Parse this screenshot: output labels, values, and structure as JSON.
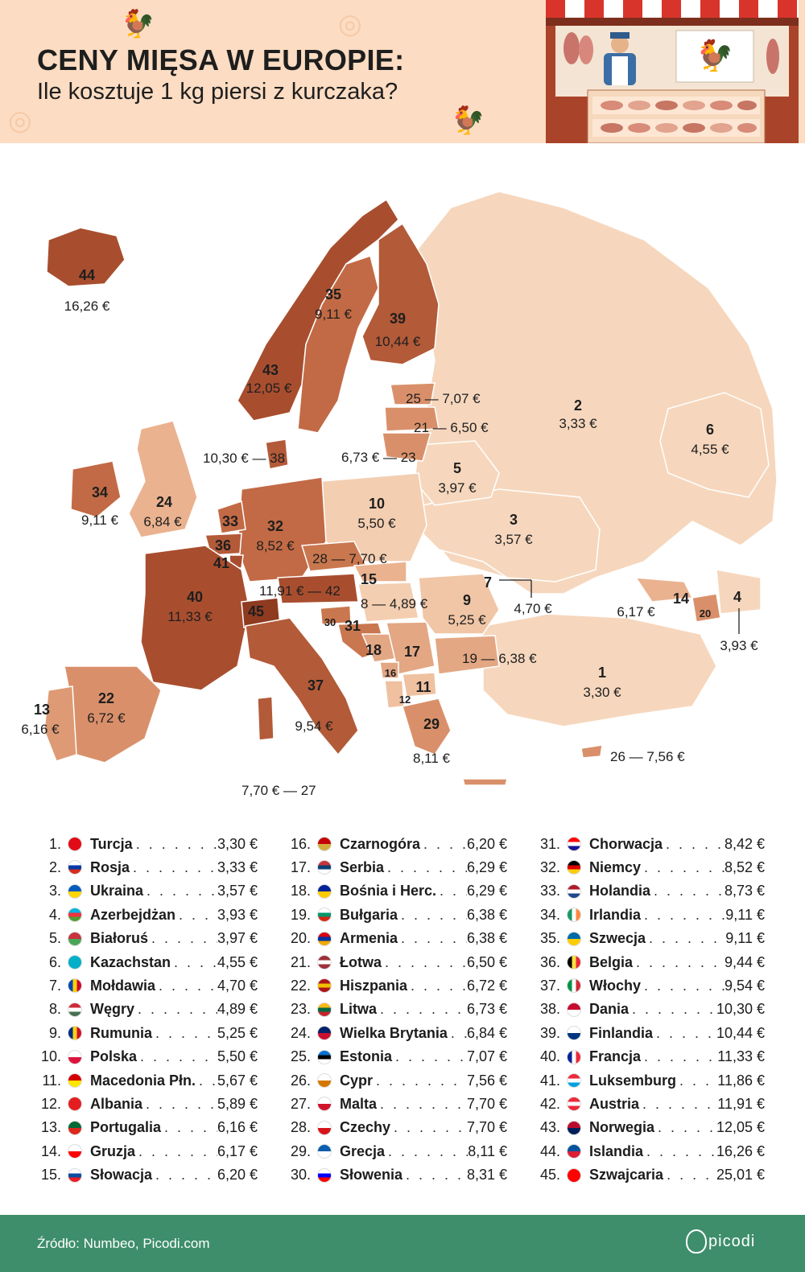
{
  "header": {
    "title": "CENY MIĘSA W EUROPIE:",
    "subtitle": "Ile kosztuje 1 kg piersi z kurczaka?"
  },
  "colors": {
    "header_bg": "#fcdcc2",
    "tier1": "#f6d7bd",
    "tier2": "#eab28f",
    "tier3": "#d9906a",
    "tier4": "#c26a45",
    "tier5": "#a84e2f",
    "footer": "#3e8e6c"
  },
  "map": {
    "labels": {
      "is_rank": "44",
      "is_price": "16,26 €",
      "se_rank": "35",
      "se_price": "9,11 €",
      "fi_rank": "39",
      "fi_price": "10,44 €",
      "no_rank": "43",
      "no_price": "12,05 €",
      "ee": "25 — 7,07 €",
      "lv": "21 — 6,50 €",
      "lt": "6,73 € — 23",
      "dk": "10,30 € — 38",
      "ie_rank": "34",
      "ie_price": "9,11 €",
      "gb_rank": "24",
      "gb_price": "6,84 €",
      "ru_rank": "2",
      "ru_price": "3,33 €",
      "kz_rank": "6",
      "kz_price": "4,55 €",
      "by_rank": "5",
      "by_price": "3,97 €",
      "pl_rank": "10",
      "pl_price": "5,50 €",
      "ua_rank": "3",
      "ua_price": "3,57 €",
      "nl_rank": "33",
      "be_rank": "36",
      "lu_rank": "41",
      "de_rank": "32",
      "de_price": "8,52 €",
      "cz": "28 — 7,70 €",
      "sk_rank": "15",
      "at": "11,91 € — 42",
      "hu": "8 — 4,89 €",
      "ro_rank": "9",
      "ro_price": "5,25 €",
      "md_rank": "7",
      "md_price": "4,70 €",
      "fr_rank": "40",
      "fr_price": "11,33 €",
      "ch_rank": "45",
      "si_rank": "30",
      "hr_rank": "31",
      "ba_rank": "18",
      "rs_rank": "17",
      "me_rank": "16",
      "mk_rank": "11",
      "al_rank": "12",
      "bg": "19 — 6,38 €",
      "ge_rank": "14",
      "ge_price": "6,17 €",
      "am_rank": "20",
      "az_rank": "4",
      "az_price": "3,93 €",
      "tr_rank": "1",
      "tr_price": "3,30 €",
      "pt_rank": "13",
      "pt_price": "6,16 €",
      "es_rank": "22",
      "es_price": "6,72 €",
      "it_rank": "37",
      "it_price": "9,54 €",
      "gr_rank": "29",
      "gr_price": "8,11 €",
      "cy": "26 — 7,56 €",
      "mt": "7,70 € — 27"
    }
  },
  "table": {
    "rows": [
      {
        "rank": "1.",
        "name": "Turcja",
        "price": "3,30 €",
        "flag": "turkey-flag"
      },
      {
        "rank": "2.",
        "name": "Rosja",
        "price": "3,33 €",
        "flag": "russia-flag"
      },
      {
        "rank": "3.",
        "name": "Ukraina",
        "price": "3,57 €",
        "flag": "ukraine-flag"
      },
      {
        "rank": "4.",
        "name": "Azerbejdżan",
        "price": "3,93 €",
        "flag": "azerbaijan-flag"
      },
      {
        "rank": "5.",
        "name": "Białoruś",
        "price": "3,97 €",
        "flag": "belarus-flag"
      },
      {
        "rank": "6.",
        "name": "Kazachstan",
        "price": "4,55 €",
        "flag": "kazakhstan-flag"
      },
      {
        "rank": "7.",
        "name": "Mołdawia",
        "price": "4,70 €",
        "flag": "moldova-flag"
      },
      {
        "rank": "8.",
        "name": "Węgry",
        "price": "4,89 €",
        "flag": "hungary-flag"
      },
      {
        "rank": "9.",
        "name": "Rumunia",
        "price": "5,25 €",
        "flag": "romania-flag"
      },
      {
        "rank": "10.",
        "name": "Polska",
        "price": "5,50 €",
        "flag": "poland-flag"
      },
      {
        "rank": "11.",
        "name": "Macedonia Płn.",
        "price": "5,67 €",
        "flag": "north-macedonia-flag"
      },
      {
        "rank": "12.",
        "name": "Albania",
        "price": "5,89 €",
        "flag": "albania-flag"
      },
      {
        "rank": "13.",
        "name": "Portugalia",
        "price": "6,16 €",
        "flag": "portugal-flag"
      },
      {
        "rank": "14.",
        "name": "Gruzja",
        "price": "6,17 €",
        "flag": "georgia-flag"
      },
      {
        "rank": "15.",
        "name": "Słowacja",
        "price": "6,20 €",
        "flag": "slovakia-flag"
      },
      {
        "rank": "16.",
        "name": "Czarnogóra",
        "price": "6,20 €",
        "flag": "montenegro-flag"
      },
      {
        "rank": "17.",
        "name": "Serbia",
        "price": "6,29 €",
        "flag": "serbia-flag"
      },
      {
        "rank": "18.",
        "name": "Bośnia i Herc.",
        "price": "6,29 €",
        "flag": "bosnia-flag"
      },
      {
        "rank": "19.",
        "name": "Bułgaria",
        "price": "6,38 €",
        "flag": "bulgaria-flag"
      },
      {
        "rank": "20.",
        "name": "Armenia",
        "price": "6,38 €",
        "flag": "armenia-flag"
      },
      {
        "rank": "21.",
        "name": "Łotwa",
        "price": "6,50 €",
        "flag": "latvia-flag"
      },
      {
        "rank": "22.",
        "name": "Hiszpania",
        "price": "6,72 €",
        "flag": "spain-flag"
      },
      {
        "rank": "23.",
        "name": "Litwa",
        "price": "6,73 €",
        "flag": "lithuania-flag"
      },
      {
        "rank": "24.",
        "name": "Wielka Brytania",
        "price": "6,84 €",
        "flag": "uk-flag"
      },
      {
        "rank": "25.",
        "name": "Estonia",
        "price": "7,07 €",
        "flag": "estonia-flag"
      },
      {
        "rank": "26.",
        "name": "Cypr",
        "price": "7,56 €",
        "flag": "cyprus-flag"
      },
      {
        "rank": "27.",
        "name": "Malta",
        "price": "7,70 €",
        "flag": "malta-flag"
      },
      {
        "rank": "28.",
        "name": "Czechy",
        "price": "7,70 €",
        "flag": "czechia-flag"
      },
      {
        "rank": "29.",
        "name": "Grecja",
        "price": "8,11 €",
        "flag": "greece-flag"
      },
      {
        "rank": "30.",
        "name": "Słowenia",
        "price": "8,31 €",
        "flag": "slovenia-flag"
      },
      {
        "rank": "31.",
        "name": "Chorwacja",
        "price": "8,42 €",
        "flag": "croatia-flag"
      },
      {
        "rank": "32.",
        "name": "Niemcy",
        "price": "8,52 €",
        "flag": "germany-flag"
      },
      {
        "rank": "33.",
        "name": "Holandia",
        "price": "8,73 €",
        "flag": "netherlands-flag"
      },
      {
        "rank": "34.",
        "name": "Irlandia",
        "price": "9,11 €",
        "flag": "ireland-flag"
      },
      {
        "rank": "35.",
        "name": "Szwecja",
        "price": "9,11 €",
        "flag": "sweden-flag"
      },
      {
        "rank": "36.",
        "name": "Belgia",
        "price": "9,44 €",
        "flag": "belgium-flag"
      },
      {
        "rank": "37.",
        "name": "Włochy",
        "price": "9,54 €",
        "flag": "italy-flag"
      },
      {
        "rank": "38.",
        "name": "Dania",
        "price": "10,30 €",
        "flag": "denmark-flag"
      },
      {
        "rank": "39.",
        "name": "Finlandia",
        "price": "10,44 €",
        "flag": "finland-flag"
      },
      {
        "rank": "40.",
        "name": "Francja",
        "price": "11,33 €",
        "flag": "france-flag"
      },
      {
        "rank": "41.",
        "name": "Luksemburg",
        "price": "11,86 €",
        "flag": "luxembourg-flag"
      },
      {
        "rank": "42.",
        "name": "Austria",
        "price": "11,91 €",
        "flag": "austria-flag"
      },
      {
        "rank": "43.",
        "name": "Norwegia",
        "price": "12,05 €",
        "flag": "norway-flag"
      },
      {
        "rank": "44.",
        "name": "Islandia",
        "price": "16,26 €",
        "flag": "iceland-flag"
      },
      {
        "rank": "45.",
        "name": "Szwajcaria",
        "price": "25,01 €",
        "flag": "switzerland-flag"
      }
    ]
  },
  "footer": {
    "source": "Źródło: Numbeo, Picodi.com",
    "brand": "picodi"
  }
}
